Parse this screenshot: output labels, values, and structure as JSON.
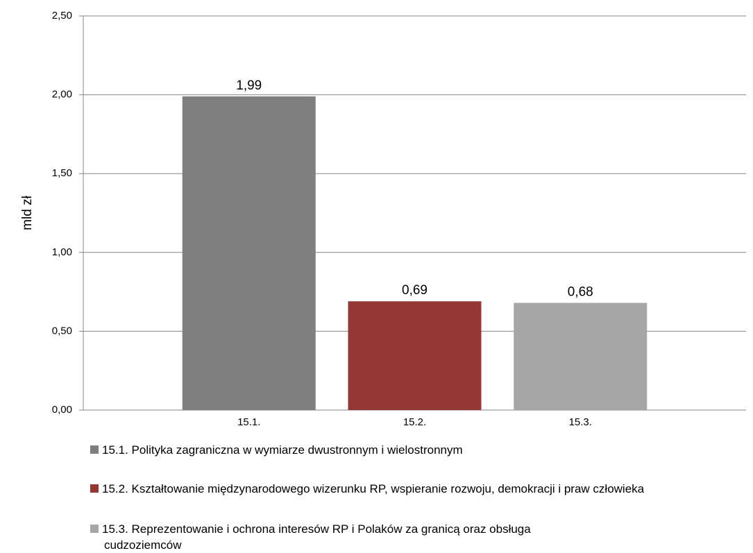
{
  "chart_data": {
    "type": "bar",
    "y_label": "mld zł",
    "categories": [
      "15.1.",
      "15.2.",
      "15.3."
    ],
    "values": [
      1.99,
      0.69,
      0.68
    ],
    "value_labels": [
      "1,99",
      "0,69",
      "0,68"
    ],
    "colors": [
      "#7f7f7f",
      "#953735",
      "#a6a6a6"
    ],
    "legend_labels": [
      "15.1. Polityka zagraniczna w wymiarze dwustronnym i wielostronnym",
      "15.2. Kształtowanie międzynarodowego wizerunku RP, wspieranie rozwoju, demokracji i praw człowieka",
      "15.3. Reprezentowanie i ochrona interesów RP i Polaków za granicą oraz obsługa cudzoziemców"
    ],
    "ylim": [
      0,
      2.5
    ],
    "yticks": [
      {
        "value": 0,
        "label": "0,00"
      },
      {
        "value": 0.5,
        "label": "0,50"
      },
      {
        "value": 1,
        "label": "1,00"
      },
      {
        "value": 1.5,
        "label": "1,50"
      },
      {
        "value": 2,
        "label": "2,00"
      },
      {
        "value": 2.5,
        "label": "2,50"
      }
    ],
    "grid": true
  }
}
